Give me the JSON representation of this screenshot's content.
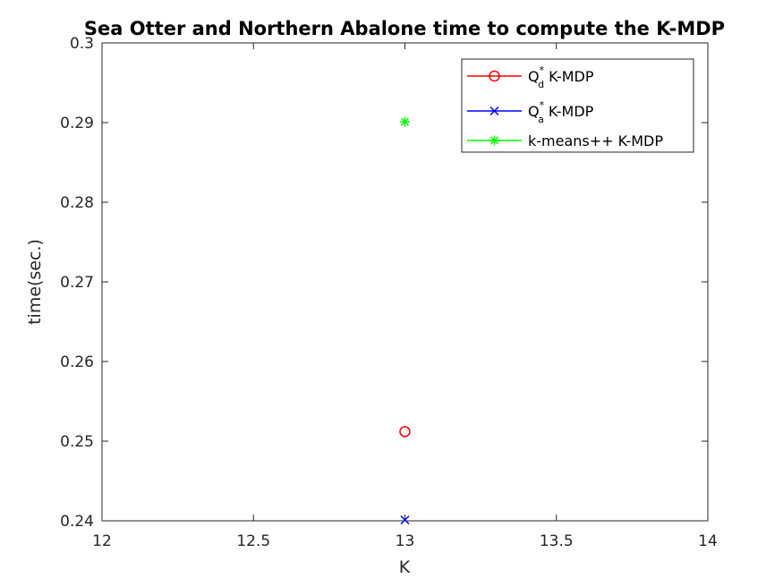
{
  "chart_data": {
    "type": "scatter",
    "title": "Sea Otter and Northern Abalone time to compute the K-MDP",
    "xlabel": "K",
    "ylabel": "time(sec.)",
    "xlim": [
      12,
      14
    ],
    "ylim": [
      0.24,
      0.3
    ],
    "xticks": [
      12,
      12.5,
      13,
      13.5,
      14
    ],
    "xtick_labels": [
      "12",
      "12.5",
      "13",
      "13.5",
      "14"
    ],
    "yticks": [
      0.24,
      0.25,
      0.26,
      0.27,
      0.28,
      0.29,
      0.3
    ],
    "ytick_labels": [
      "0.24",
      "0.25",
      "0.26",
      "0.27",
      "0.28",
      "0.29",
      "0.3"
    ],
    "grid": false,
    "legend_position": "top-right",
    "series": [
      {
        "name": "Q*d K-MDP",
        "legend_main": "Q",
        "legend_sup": "*",
        "legend_sub": "d",
        "legend_rest": " K-MDP",
        "color": "#ff0000",
        "marker": "circle",
        "x": [
          13
        ],
        "y": [
          0.2512
        ]
      },
      {
        "name": "Q*a K-MDP",
        "legend_main": "Q",
        "legend_sup": "*",
        "legend_sub": "a",
        "legend_rest": " K-MDP",
        "color": "#0000ff",
        "marker": "x",
        "x": [
          13
        ],
        "y": [
          0.2401
        ]
      },
      {
        "name": "k-means++ K-MDP",
        "legend_main": "k-means++ K-MDP",
        "legend_sup": "",
        "legend_sub": "",
        "legend_rest": "",
        "color": "#00ff00",
        "marker": "asterisk",
        "x": [
          13
        ],
        "y": [
          0.2901
        ]
      }
    ]
  }
}
